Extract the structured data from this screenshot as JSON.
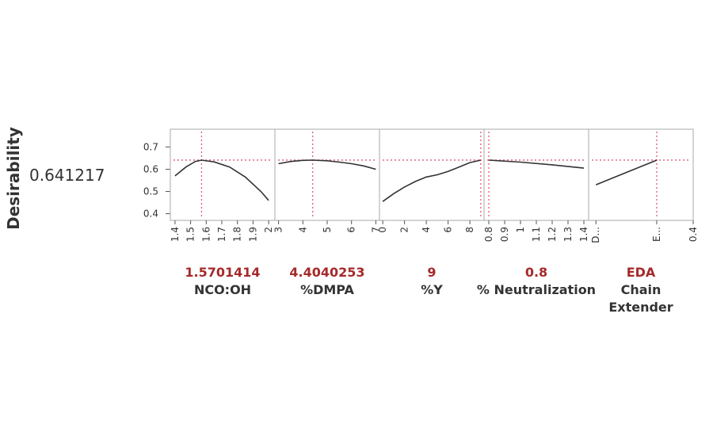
{
  "chart_data": {
    "type": "line",
    "title": "",
    "ylabel": "Desirability",
    "current_desirability": "0.641217",
    "yticks": [
      "0.4",
      "0.5",
      "0.6",
      "0.7"
    ],
    "ylim": [
      0.37,
      0.78
    ],
    "colors": {
      "curve": "#333333",
      "crosshair": "#e05a72",
      "value": "#a52a2a",
      "frame": "#aaaaaa"
    },
    "panels": [
      {
        "factor": "NCO:OH",
        "value_label": "1.5701414",
        "current_x": 1.5701414,
        "xlim": [
          1.37,
          2.04
        ],
        "ticks": [
          1.4,
          1.5,
          1.6,
          1.7,
          1.8,
          1.9,
          2
        ],
        "tick_labels": [
          "1.4",
          "1.5",
          "1.6",
          "1.7",
          "1.8",
          "1.9",
          "2"
        ],
        "points": [
          [
            1.4,
            0.57
          ],
          [
            1.47,
            0.61
          ],
          [
            1.53,
            0.635
          ],
          [
            1.57,
            0.641
          ],
          [
            1.65,
            0.633
          ],
          [
            1.75,
            0.61
          ],
          [
            1.85,
            0.565
          ],
          [
            1.95,
            0.5
          ],
          [
            2.0,
            0.46
          ]
        ]
      },
      {
        "factor": "%DMPA",
        "value_label": "4.4040253",
        "current_x": 4.4040253,
        "xlim": [
          2.85,
          7.15
        ],
        "ticks": [
          3,
          4,
          5,
          6,
          7
        ],
        "tick_labels": [
          "3",
          "4",
          "5",
          "6",
          "7"
        ],
        "points": [
          [
            3.0,
            0.625
          ],
          [
            3.5,
            0.635
          ],
          [
            4.0,
            0.64
          ],
          [
            4.4,
            0.641
          ],
          [
            5.0,
            0.638
          ],
          [
            5.5,
            0.632
          ],
          [
            6.0,
            0.625
          ],
          [
            6.5,
            0.615
          ],
          [
            7.0,
            0.6
          ]
        ]
      },
      {
        "factor": "%Y",
        "value_label": "9",
        "current_x": 9,
        "xlim": [
          -0.3,
          9.3
        ],
        "ticks": [
          0,
          2,
          4,
          6,
          8
        ],
        "tick_labels": [
          "0",
          "2",
          "4",
          "6",
          "8"
        ],
        "points": [
          [
            0,
            0.455
          ],
          [
            1,
            0.49
          ],
          [
            2,
            0.52
          ],
          [
            3,
            0.545
          ],
          [
            4,
            0.565
          ],
          [
            5,
            0.575
          ],
          [
            6,
            0.59
          ],
          [
            7,
            0.61
          ],
          [
            8,
            0.63
          ],
          [
            9,
            0.641
          ]
        ]
      },
      {
        "factor": "% Neutralization",
        "value_label": "0.8",
        "current_x": 0.8,
        "xlim": [
          0.77,
          1.43
        ],
        "ticks": [
          0.8,
          0.9,
          1,
          1.1,
          1.2,
          1.3,
          1.4
        ],
        "tick_labels": [
          "0.8",
          "0.9",
          "1",
          "1.1",
          "1.2",
          "1.3",
          "1.4"
        ],
        "points": [
          [
            0.8,
            0.641
          ],
          [
            1.0,
            0.632
          ],
          [
            1.2,
            0.62
          ],
          [
            1.4,
            0.605
          ]
        ]
      },
      {
        "factor": "Chain\nExtender",
        "value_label": "EDA",
        "current_x": 0.25,
        "xlim": [
          -0.03,
          0.4
        ],
        "ticks": [
          0,
          0.25,
          0.4
        ],
        "tick_labels": [
          "D...",
          "E...",
          "0.4"
        ],
        "points": [
          [
            0,
            0.53
          ],
          [
            0.25,
            0.641
          ]
        ]
      }
    ]
  }
}
